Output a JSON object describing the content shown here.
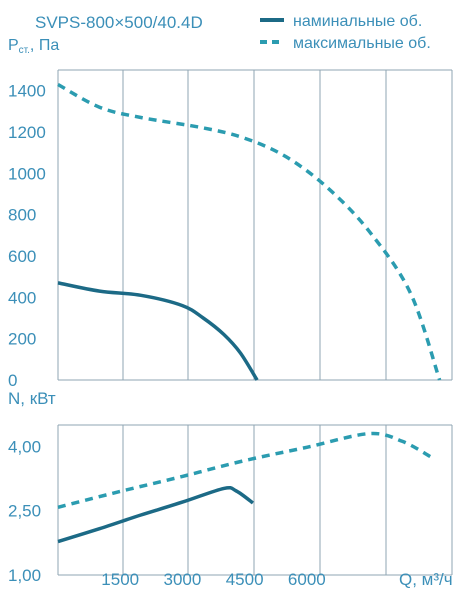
{
  "chart_data": [
    {
      "type": "line",
      "title": "SVPS-800×500/40.4D",
      "ylabel_main": "P",
      "ylabel_sub": "ст.",
      "ylabel_unit": ", Па",
      "ylim": [
        0,
        1500
      ],
      "yticks": [
        "1400",
        "1200",
        "1000",
        "800",
        "600",
        "400",
        "200",
        "0"
      ],
      "grid": true,
      "legend_placement": "top-right",
      "series": [
        {
          "name": "наминальные об.",
          "style": "solid",
          "x": [
            0,
            1000,
            2000,
            3000,
            3500,
            4000,
            4400,
            4800
          ],
          "values": [
            470,
            430,
            410,
            360,
            300,
            220,
            130,
            0
          ]
        },
        {
          "name": "максимальные об.",
          "style": "dashed",
          "x": [
            0,
            1000,
            2000,
            3500,
            4500,
            5500,
            6500,
            7500,
            8500,
            9200
          ],
          "values": [
            1430,
            1320,
            1270,
            1220,
            1170,
            1080,
            930,
            720,
            420,
            0
          ]
        }
      ]
    },
    {
      "type": "line",
      "ylabel": "N, кВт",
      "xlabel": "Q, м³/ч",
      "xlim": [
        0,
        9500
      ],
      "xticks": [
        "1500",
        "3000",
        "4500",
        "6000"
      ],
      "yticks": [
        "4,00",
        "2,50",
        "1,00"
      ],
      "ylim": [
        1.0,
        4.5
      ],
      "grid": true,
      "series": [
        {
          "name": "наминальные об.",
          "style": "solid",
          "x": [
            0,
            1000,
            2000,
            3000,
            4000,
            4300,
            4700
          ],
          "values": [
            1.78,
            2.08,
            2.4,
            2.7,
            3.02,
            2.96,
            2.68
          ]
        },
        {
          "name": "максимальные об.",
          "style": "dashed",
          "x": [
            0,
            1500,
            3000,
            4500,
            6000,
            7500,
            8300,
            9000
          ],
          "values": [
            2.58,
            2.95,
            3.3,
            3.67,
            3.98,
            4.3,
            4.12,
            3.75
          ]
        }
      ]
    }
  ],
  "colors": {
    "solid_line": "#1c6a86",
    "dashed_line": "#2b9cb0",
    "grid": "#8fa6b3",
    "text": "#3b8fb8"
  }
}
